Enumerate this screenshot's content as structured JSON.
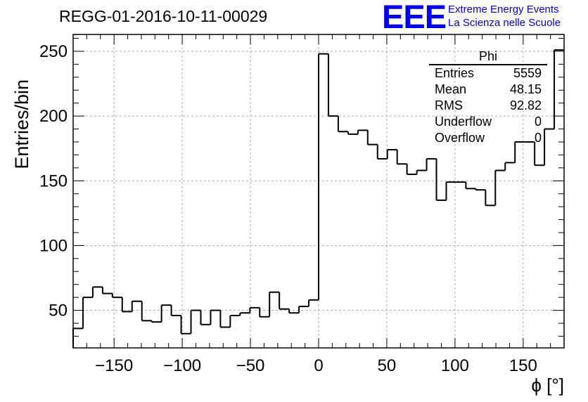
{
  "header": {
    "title": "REGG-01-2016-10-11-00029",
    "logo_text": "EEE",
    "brand_line1": "Extreme Energy Events",
    "brand_line2": "La Scienza nelle Scuole",
    "logo_color": "#0000ee"
  },
  "stats_box": {
    "name": "Phi",
    "rows": [
      {
        "label": "Entries",
        "value": "5559"
      },
      {
        "label": "Mean",
        "value": "48.15"
      },
      {
        "label": "RMS",
        "value": "92.82"
      },
      {
        "label": "Underflow",
        "value": "0"
      },
      {
        "label": "Overflow",
        "value": "0"
      }
    ]
  },
  "chart_data": {
    "type": "bar",
    "style": "histogram-step",
    "title": "REGG-01-2016-10-11-00029",
    "xlabel": "ϕ [°]",
    "ylabel": "Entries/bin",
    "xlim": [
      -180,
      180
    ],
    "ylim": [
      21,
      263
    ],
    "bin_width": 7.2,
    "x_ticks": [
      -150,
      -100,
      -50,
      0,
      50,
      100,
      150
    ],
    "x_tick_labels": [
      "−150",
      "−100",
      "−50",
      "0",
      "50",
      "100",
      "150"
    ],
    "y_ticks": [
      50,
      100,
      150,
      200,
      250
    ],
    "y_tick_labels": [
      "50",
      "100",
      "150",
      "200",
      "250"
    ],
    "grid": true,
    "line_color": "#000000",
    "values": [
      36,
      60,
      68,
      63,
      60,
      49,
      57,
      42,
      41,
      54,
      46,
      32,
      50,
      39,
      50,
      37,
      46,
      48,
      52,
      45,
      64,
      51,
      48,
      53,
      58,
      248,
      200,
      188,
      186,
      189,
      178,
      167,
      174,
      163,
      155,
      158,
      167,
      135,
      149,
      149,
      144,
      143,
      131,
      158,
      164,
      180,
      180,
      162,
      190,
      251
    ]
  }
}
